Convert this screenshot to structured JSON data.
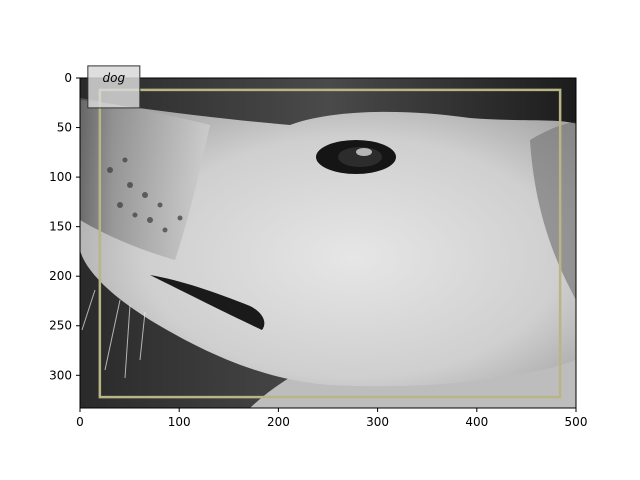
{
  "image": {
    "subject": "dog",
    "description": "grayscale close-up photo of a light-coloured dog's head in profile, snout pointing left",
    "width": 500,
    "height": 333
  },
  "axes": {
    "x_ticks": [
      0,
      100,
      200,
      300,
      400,
      500
    ],
    "y_ticks": [
      0,
      50,
      100,
      150,
      200,
      250,
      300
    ],
    "tick_labels_x": [
      "0",
      "100",
      "200",
      "300",
      "400",
      "500"
    ],
    "tick_labels_y": [
      "0",
      "50",
      "100",
      "150",
      "200",
      "250",
      "300"
    ]
  },
  "detections": [
    {
      "label": "dog",
      "box": {
        "x0": 20,
        "y0": 12,
        "x1": 484,
        "y1": 322
      },
      "box_color": "#b9b585",
      "label_bg": "#d8d8d8"
    }
  ]
}
